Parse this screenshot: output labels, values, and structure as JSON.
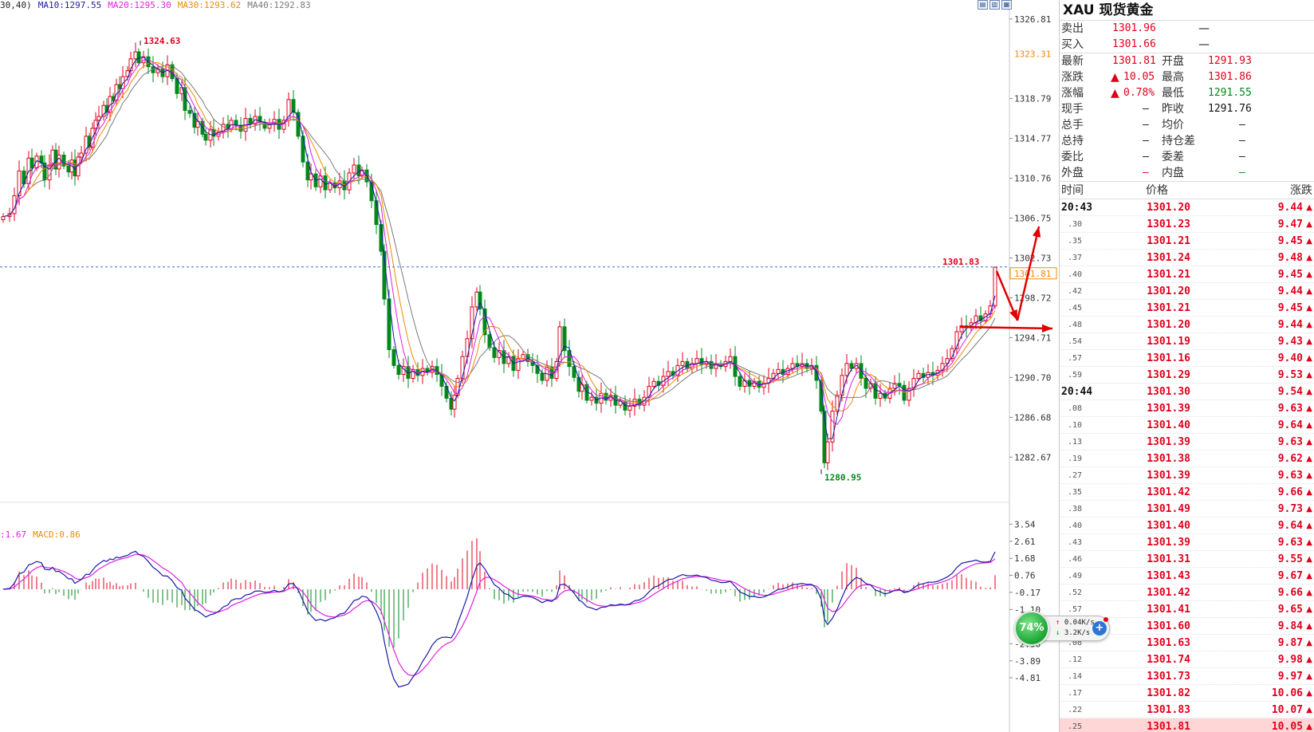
{
  "ma_legend": [
    {
      "text": "30,40)",
      "color": "#222222"
    },
    {
      "text": "MA10:1297.55",
      "color": "#1a1aa6"
    },
    {
      "text": "MA20:1295.30",
      "color": "#e020e0"
    },
    {
      "text": "MA30:1293.62",
      "color": "#f08a00"
    },
    {
      "text": "MA40:1292.83",
      "color": "#7a7a7a"
    }
  ],
  "macd_legend": [
    {
      "text": ":1.67",
      "color": "#e020e0"
    },
    {
      "text": "MACD:0.86",
      "color": "#f08a00"
    }
  ],
  "chart_data": [
    {
      "type": "candlestick",
      "price_axis_ticks": [
        "1326.81",
        "1318.79",
        "1314.77",
        "1310.76",
        "1306.75",
        "1302.73",
        "1298.72",
        "1294.71",
        "1290.70",
        "1286.68",
        "1282.67"
      ],
      "ylim": [
        1280.2,
        1327.6
      ],
      "highlight_tick": "1323.31",
      "current_price_label": "1301.81",
      "current_price_line": 1301.83,
      "annotations": [
        {
          "text": "1324.63",
          "value": 1324.63,
          "kind": "high"
        },
        {
          "text": "1301.83",
          "value": 1301.83,
          "kind": "last-high"
        },
        {
          "text": "1280.95",
          "value": 1280.95,
          "kind": "low"
        }
      ],
      "close_path": [
        [
          0,
          1306.9
        ],
        [
          8,
          1307.2
        ],
        [
          14,
          1309.0
        ],
        [
          20,
          1311.5
        ],
        [
          26,
          1310.2
        ],
        [
          32,
          1312.8
        ],
        [
          36,
          1311.8
        ],
        [
          42,
          1313.0
        ],
        [
          48,
          1312.3
        ],
        [
          52,
          1310.6
        ],
        [
          58,
          1312.1
        ],
        [
          62,
          1313.6
        ],
        [
          66,
          1311.7
        ],
        [
          70,
          1313.1
        ],
        [
          76,
          1312.0
        ],
        [
          82,
          1311.4
        ],
        [
          86,
          1312.6
        ],
        [
          90,
          1311.0
        ],
        [
          94,
          1312.9
        ],
        [
          98,
          1313.3
        ],
        [
          104,
          1315.0
        ],
        [
          108,
          1313.9
        ],
        [
          112,
          1315.8
        ],
        [
          116,
          1316.6
        ],
        [
          120,
          1317.0
        ],
        [
          126,
          1318.1
        ],
        [
          130,
          1317.4
        ],
        [
          134,
          1319.0
        ],
        [
          138,
          1318.6
        ],
        [
          142,
          1320.2
        ],
        [
          146,
          1319.8
        ],
        [
          150,
          1321.0
        ],
        [
          156,
          1321.6
        ],
        [
          160,
          1322.8
        ],
        [
          166,
          1323.5
        ],
        [
          170,
          1322.4
        ],
        [
          176,
          1323.0
        ],
        [
          182,
          1322.0
        ],
        [
          188,
          1321.4
        ],
        [
          194,
          1321.8
        ],
        [
          200,
          1321.0
        ],
        [
          206,
          1322.2
        ],
        [
          212,
          1320.8
        ],
        [
          218,
          1319.3
        ],
        [
          224,
          1319.9
        ],
        [
          228,
          1317.6
        ],
        [
          234,
          1317.3
        ],
        [
          240,
          1315.9
        ],
        [
          244,
          1316.5
        ],
        [
          250,
          1315.2
        ],
        [
          254,
          1314.6
        ],
        [
          260,
          1315.7
        ],
        [
          264,
          1315.0
        ],
        [
          270,
          1315.4
        ],
        [
          276,
          1316.2
        ],
        [
          282,
          1315.7
        ],
        [
          286,
          1316.6
        ],
        [
          292,
          1316.1
        ],
        [
          298,
          1315.5
        ],
        [
          304,
          1316.8
        ],
        [
          310,
          1316.2
        ],
        [
          316,
          1317.0
        ],
        [
          322,
          1316.4
        ],
        [
          328,
          1315.8
        ],
        [
          334,
          1316.2
        ],
        [
          340,
          1316.7
        ],
        [
          346,
          1315.7
        ],
        [
          352,
          1316.6
        ],
        [
          358,
          1318.7
        ],
        [
          364,
          1317.4
        ],
        [
          370,
          1315.0
        ],
        [
          376,
          1312.4
        ],
        [
          382,
          1310.6
        ],
        [
          386,
          1311.2
        ],
        [
          392,
          1309.9
        ],
        [
          398,
          1311.0
        ],
        [
          404,
          1309.6
        ],
        [
          410,
          1310.3
        ],
        [
          416,
          1309.8
        ],
        [
          422,
          1310.5
        ],
        [
          428,
          1309.6
        ],
        [
          434,
          1311.3
        ],
        [
          440,
          1312.1
        ],
        [
          446,
          1311.0
        ],
        [
          450,
          1311.6
        ],
        [
          456,
          1310.4
        ],
        [
          462,
          1308.5
        ],
        [
          468,
          1306.1
        ],
        [
          474,
          1303.4
        ],
        [
          478,
          1298.6
        ],
        [
          484,
          1293.5
        ],
        [
          490,
          1291.9
        ],
        [
          496,
          1291.0
        ],
        [
          502,
          1291.8
        ],
        [
          508,
          1290.6
        ],
        [
          514,
          1291.5
        ],
        [
          520,
          1290.9
        ],
        [
          526,
          1291.6
        ],
        [
          532,
          1291.2
        ],
        [
          538,
          1291.8
        ],
        [
          544,
          1291.0
        ],
        [
          550,
          1289.8
        ],
        [
          556,
          1288.6
        ],
        [
          562,
          1287.5
        ],
        [
          566,
          1288.9
        ],
        [
          570,
          1290.6
        ],
        [
          576,
          1292.8
        ],
        [
          582,
          1294.6
        ],
        [
          588,
          1297.8
        ],
        [
          594,
          1299.3
        ],
        [
          598,
          1297.6
        ],
        [
          604,
          1295.0
        ],
        [
          610,
          1293.7
        ],
        [
          616,
          1292.7
        ],
        [
          622,
          1293.4
        ],
        [
          628,
          1292.1
        ],
        [
          634,
          1292.8
        ],
        [
          640,
          1291.4
        ],
        [
          646,
          1292.6
        ],
        [
          652,
          1293.0
        ],
        [
          658,
          1292.3
        ],
        [
          664,
          1291.9
        ],
        [
          670,
          1291.1
        ],
        [
          676,
          1290.4
        ],
        [
          682,
          1291.7
        ],
        [
          688,
          1290.6
        ],
        [
          694,
          1292.3
        ],
        [
          698,
          1295.8
        ],
        [
          704,
          1293.4
        ],
        [
          710,
          1291.8
        ],
        [
          716,
          1290.7
        ],
        [
          722,
          1289.3
        ],
        [
          726,
          1290.0
        ],
        [
          732,
          1288.4
        ],
        [
          738,
          1288.7
        ],
        [
          744,
          1288.1
        ],
        [
          750,
          1289.1
        ],
        [
          756,
          1288.4
        ],
        [
          762,
          1288.9
        ],
        [
          768,
          1287.9
        ],
        [
          774,
          1288.3
        ],
        [
          780,
          1287.4
        ],
        [
          786,
          1287.8
        ],
        [
          792,
          1288.5
        ],
        [
          798,
          1287.9
        ],
        [
          804,
          1288.7
        ],
        [
          810,
          1289.8
        ],
        [
          816,
          1290.3
        ],
        [
          822,
          1289.9
        ],
        [
          828,
          1290.8
        ],
        [
          834,
          1291.3
        ],
        [
          840,
          1290.9
        ],
        [
          846,
          1291.9
        ],
        [
          852,
          1292.3
        ],
        [
          858,
          1291.6
        ],
        [
          864,
          1292.1
        ],
        [
          870,
          1292.6
        ],
        [
          876,
          1292.0
        ],
        [
          882,
          1292.3
        ],
        [
          888,
          1291.6
        ],
        [
          894,
          1292.1
        ],
        [
          900,
          1291.8
        ],
        [
          906,
          1292.3
        ],
        [
          912,
          1292.8
        ],
        [
          918,
          1290.8
        ],
        [
          924,
          1289.8
        ],
        [
          930,
          1290.4
        ],
        [
          936,
          1289.8
        ],
        [
          942,
          1290.3
        ],
        [
          948,
          1289.7
        ],
        [
          954,
          1290.1
        ],
        [
          960,
          1290.6
        ],
        [
          966,
          1291.1
        ],
        [
          972,
          1291.5
        ],
        [
          978,
          1291.0
        ],
        [
          984,
          1291.6
        ],
        [
          990,
          1292.1
        ],
        [
          996,
          1291.8
        ],
        [
          1002,
          1292.1
        ],
        [
          1008,
          1291.6
        ],
        [
          1014,
          1291.9
        ],
        [
          1020,
          1290.4
        ],
        [
          1026,
          1287.3
        ],
        [
          1030,
          1282.1
        ],
        [
          1034,
          1284.2
        ],
        [
          1040,
          1287.3
        ],
        [
          1046,
          1288.9
        ],
        [
          1052,
          1290.9
        ],
        [
          1058,
          1292.1
        ],
        [
          1064,
          1291.6
        ],
        [
          1070,
          1292.1
        ],
        [
          1076,
          1290.6
        ],
        [
          1082,
          1289.6
        ],
        [
          1088,
          1290.1
        ],
        [
          1094,
          1288.6
        ],
        [
          1100,
          1289.1
        ],
        [
          1106,
          1288.6
        ],
        [
          1112,
          1289.6
        ],
        [
          1118,
          1290.1
        ],
        [
          1124,
          1289.9
        ],
        [
          1130,
          1288.4
        ],
        [
          1136,
          1289.6
        ],
        [
          1142,
          1290.6
        ],
        [
          1148,
          1291.1
        ],
        [
          1154,
          1290.7
        ],
        [
          1160,
          1291.2
        ],
        [
          1166,
          1290.9
        ],
        [
          1172,
          1291.4
        ],
        [
          1178,
          1292.1
        ],
        [
          1184,
          1292.6
        ],
        [
          1190,
          1293.6
        ],
        [
          1196,
          1295.3
        ],
        [
          1202,
          1295.9
        ],
        [
          1208,
          1295.7
        ],
        [
          1214,
          1296.2
        ],
        [
          1220,
          1296.9
        ],
        [
          1226,
          1296.4
        ],
        [
          1232,
          1297.1
        ],
        [
          1238,
          1297.9
        ],
        [
          1244,
          1301.8
        ]
      ]
    },
    {
      "type": "macd",
      "ticks": [
        "3.54",
        "2.61",
        "1.68",
        "0.76",
        "-0.17",
        "-1.10",
        "-2.96",
        "-3.89",
        "-4.81"
      ],
      "ylim": [
        -5.2,
        3.9
      ]
    }
  ],
  "panel": {
    "title": "XAU 现货黄金",
    "sell_label": "卖出",
    "sell_value": "1301.96",
    "sell_vol": "—",
    "buy_label": "买入",
    "buy_value": "1301.66",
    "buy_vol": "—",
    "rows": [
      {
        "l1": "最新",
        "v1": "1301.81",
        "c1": "red",
        "l2": "开盘",
        "v2": "1291.93",
        "c2": "red"
      },
      {
        "l1": "涨跌",
        "v1": "10.05",
        "c1": "red",
        "arrow1": "up",
        "l2": "最高",
        "v2": "1301.86",
        "c2": "red"
      },
      {
        "l1": "涨幅",
        "v1": "0.78%",
        "c1": "red",
        "arrow1": "up",
        "l2": "最低",
        "v2": "1291.55",
        "c2": "green"
      },
      {
        "l1": "现手",
        "v1": "—",
        "c1": "blk",
        "l2": "昨收",
        "v2": "1291.76",
        "c2": "blk"
      },
      {
        "l1": "总手",
        "v1": "—",
        "c1": "blk",
        "l2": "均价",
        "v2": "—",
        "c2": "blk"
      },
      {
        "l1": "总持",
        "v1": "—",
        "c1": "blk",
        "l2": "持仓差",
        "v2": "—",
        "c2": "blk"
      },
      {
        "l1": "委比",
        "v1": "—",
        "c1": "blk",
        "l2": "委差",
        "v2": "—",
        "c2": "blk"
      },
      {
        "l1": "外盘",
        "v1": "—",
        "c1": "red",
        "l2": "内盘",
        "v2": "—",
        "c2": "green"
      }
    ],
    "tick_header": {
      "time": "时间",
      "price": "价格",
      "change": "涨跌"
    },
    "ticks": [
      {
        "time": "20:43",
        "major": true,
        "price": "1301.20",
        "change": "9.44"
      },
      {
        "time": ".30",
        "price": "1301.23",
        "change": "9.47"
      },
      {
        "time": ".35",
        "price": "1301.21",
        "change": "9.45"
      },
      {
        "time": ".37",
        "price": "1301.24",
        "change": "9.48"
      },
      {
        "time": ".40",
        "price": "1301.21",
        "change": "9.45"
      },
      {
        "time": ".42",
        "price": "1301.20",
        "change": "9.44"
      },
      {
        "time": ".45",
        "price": "1301.21",
        "change": "9.45"
      },
      {
        "time": ".48",
        "price": "1301.20",
        "change": "9.44"
      },
      {
        "time": ".54",
        "price": "1301.19",
        "change": "9.43"
      },
      {
        "time": ".57",
        "price": "1301.16",
        "change": "9.40"
      },
      {
        "time": ".59",
        "price": "1301.29",
        "change": "9.53"
      },
      {
        "time": "20:44",
        "major": true,
        "price": "1301.30",
        "change": "9.54"
      },
      {
        "time": ".08",
        "price": "1301.39",
        "change": "9.63"
      },
      {
        "time": ".10",
        "price": "1301.40",
        "change": "9.64"
      },
      {
        "time": ".13",
        "price": "1301.39",
        "change": "9.63"
      },
      {
        "time": ".19",
        "price": "1301.38",
        "change": "9.62"
      },
      {
        "time": ".27",
        "price": "1301.39",
        "change": "9.63"
      },
      {
        "time": ".35",
        "price": "1301.42",
        "change": "9.66"
      },
      {
        "time": ".38",
        "price": "1301.49",
        "change": "9.73"
      },
      {
        "time": ".40",
        "price": "1301.40",
        "change": "9.64"
      },
      {
        "time": ".43",
        "price": "1301.39",
        "change": "9.63"
      },
      {
        "time": ".46",
        "price": "1301.31",
        "change": "9.55"
      },
      {
        "time": ".49",
        "price": "1301.43",
        "change": "9.67"
      },
      {
        "time": ".52",
        "price": "1301.42",
        "change": "9.66"
      },
      {
        "time": ".57",
        "price": "1301.41",
        "change": "9.65"
      },
      {
        "time": "20:45",
        "major": true,
        "price": "1301.60",
        "change": "9.84"
      },
      {
        "time": ".08",
        "price": "1301.63",
        "change": "9.87"
      },
      {
        "time": ".12",
        "price": "1301.74",
        "change": "9.98"
      },
      {
        "time": ".14",
        "price": "1301.73",
        "change": "9.97"
      },
      {
        "time": ".17",
        "price": "1301.82",
        "change": "10.06"
      },
      {
        "time": ".22",
        "price": "1301.83",
        "change": "10.07"
      },
      {
        "time": ".25",
        "price": "1301.81",
        "change": "10.05",
        "highlight": true
      }
    ]
  },
  "network": {
    "percent": "74%",
    "up": "0.04K/s",
    "down": "3.2K/s"
  },
  "colors": {
    "up": "#e0001b",
    "down": "#00891b",
    "ma10": "#1a1aa6",
    "ma20": "#e020e0",
    "ma30": "#f08a00",
    "ma40": "#7a7a7a"
  }
}
